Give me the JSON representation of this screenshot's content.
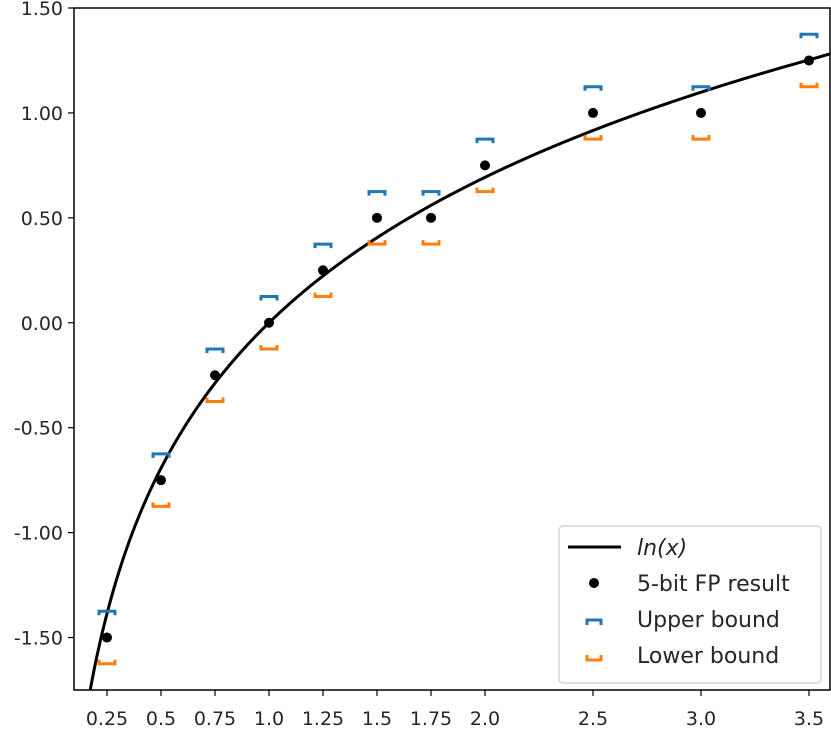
{
  "chart_data": {
    "type": "scatter",
    "title": "",
    "xlabel": "",
    "ylabel": "",
    "xlim": [
      0.1,
      3.6
    ],
    "ylim": [
      -1.75,
      1.5
    ],
    "grid": false,
    "legend_position": "bottom-right",
    "x_ticks": [
      0.25,
      0.5,
      0.75,
      1.0,
      1.25,
      1.5,
      1.75,
      2.0,
      2.5,
      3.0,
      3.5
    ],
    "x_tick_labels": [
      "0.25",
      "0.5",
      "0.75",
      "1.0",
      "1.25",
      "1.5",
      "1.75",
      "2.0",
      "2.5",
      "3.0",
      "3.5"
    ],
    "y_ticks": [
      -1.5,
      -1.0,
      -0.5,
      0.0,
      0.5,
      1.0,
      1.5
    ],
    "y_tick_labels": [
      "-1.50",
      "-1.00",
      "-0.50",
      "0.00",
      "0.50",
      "1.00",
      "1.50"
    ],
    "series": [
      {
        "name": "ln(x)",
        "legend_label": "ln(x)",
        "kind": "line",
        "function": "ln",
        "color": "#000000"
      },
      {
        "name": "5-bit FP result",
        "legend_label": "5-bit FP result",
        "kind": "scatter",
        "color": "#000000",
        "x": [
          0.25,
          0.5,
          0.75,
          1.0,
          1.25,
          1.5,
          1.75,
          2.0,
          2.5,
          3.0,
          3.5
        ],
        "y": [
          -1.5,
          -0.75,
          -0.25,
          0.0,
          0.25,
          0.5,
          0.5,
          0.75,
          1.0,
          1.0,
          1.25
        ]
      },
      {
        "name": "Upper bound",
        "legend_label": "Upper bound",
        "kind": "bracket-up",
        "color": "#1f77b4",
        "x": [
          0.25,
          0.5,
          0.75,
          1.0,
          1.25,
          1.5,
          1.75,
          2.0,
          2.5,
          3.0,
          3.5
        ],
        "y": [
          -1.375,
          -0.625,
          -0.125,
          0.125,
          0.375,
          0.625,
          0.625,
          0.875,
          1.125,
          1.125,
          1.375
        ]
      },
      {
        "name": "Lower bound",
        "legend_label": "Lower bound",
        "kind": "bracket-down",
        "color": "#ff7f0e",
        "x": [
          0.25,
          0.5,
          0.75,
          1.0,
          1.25,
          1.5,
          1.75,
          2.0,
          2.5,
          3.0,
          3.5
        ],
        "y": [
          -1.625,
          -0.875,
          -0.375,
          -0.125,
          0.125,
          0.375,
          0.375,
          0.625,
          0.875,
          0.875,
          1.125
        ]
      }
    ]
  }
}
